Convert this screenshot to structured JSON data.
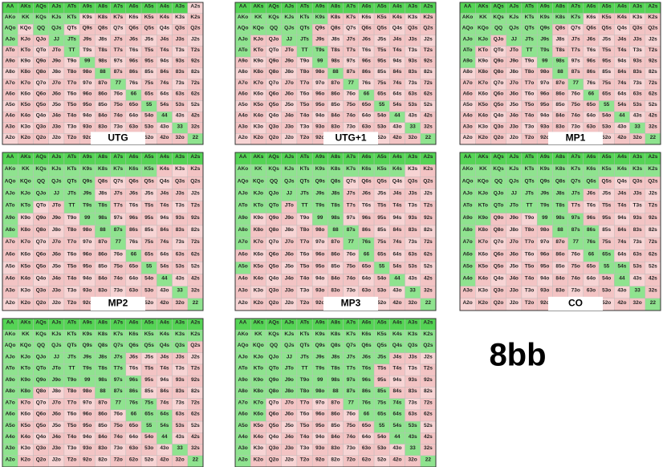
{
  "hands": [
    [
      "AA",
      "AKs",
      "AQs",
      "AJs",
      "ATs",
      "A9s",
      "A8s",
      "A7s",
      "A6s",
      "A5s",
      "A4s",
      "A3s",
      "A2s"
    ],
    [
      "AKo",
      "KK",
      "KQs",
      "KJs",
      "KTs",
      "K9s",
      "K8s",
      "K7s",
      "K6s",
      "K5s",
      "K4s",
      "K3s",
      "K2s"
    ],
    [
      "AQo",
      "KQo",
      "QQ",
      "QJs",
      "QTs",
      "Q9s",
      "Q8s",
      "Q7s",
      "Q6s",
      "Q5s",
      "Q4s",
      "Q3s",
      "Q2s"
    ],
    [
      "AJo",
      "KJo",
      "QJo",
      "JJ",
      "JTs",
      "J9s",
      "J8s",
      "J7s",
      "J6s",
      "J5s",
      "J4s",
      "J3s",
      "J2s"
    ],
    [
      "ATo",
      "KTo",
      "QTo",
      "JTo",
      "TT",
      "T9s",
      "T8s",
      "T7s",
      "T6s",
      "T5s",
      "T4s",
      "T3s",
      "T2s"
    ],
    [
      "A9o",
      "K9o",
      "Q9o",
      "J9o",
      "T9o",
      "99",
      "98s",
      "97s",
      "96s",
      "95s",
      "94s",
      "93s",
      "92s"
    ],
    [
      "A8o",
      "K8o",
      "Q8o",
      "J8o",
      "T8o",
      "98o",
      "88",
      "87s",
      "86s",
      "85s",
      "84s",
      "83s",
      "82s"
    ],
    [
      "A7o",
      "K7o",
      "Q7o",
      "J7o",
      "T7o",
      "97o",
      "87o",
      "77",
      "76s",
      "75s",
      "74s",
      "73s",
      "72s"
    ],
    [
      "A6o",
      "K6o",
      "Q6o",
      "J6o",
      "T6o",
      "96o",
      "86o",
      "76o",
      "66",
      "65s",
      "64s",
      "63s",
      "62s"
    ],
    [
      "A5o",
      "K5o",
      "Q5o",
      "J5o",
      "T5o",
      "95o",
      "85o",
      "75o",
      "65o",
      "55",
      "54s",
      "53s",
      "52s"
    ],
    [
      "A4o",
      "K4o",
      "Q4o",
      "J4o",
      "T4o",
      "94o",
      "84o",
      "74o",
      "64o",
      "54o",
      "44",
      "43s",
      "42s"
    ],
    [
      "A3o",
      "K3o",
      "Q3o",
      "J3o",
      "T3o",
      "93o",
      "83o",
      "73o",
      "63o",
      "53o",
      "43o",
      "33",
      "32s"
    ],
    [
      "A2o",
      "K2o",
      "Q2o",
      "J2o",
      "T2o",
      "92o",
      "82o",
      "72o",
      "62o",
      "52o",
      "42o",
      "32o",
      "22"
    ]
  ],
  "charts": [
    {
      "label": "UTG",
      "open": [
        "AA",
        "AKs",
        "AQs",
        "AJs",
        "ATs",
        "A9s",
        "A8s",
        "A7s",
        "A6s",
        "A5s",
        "A4s",
        "A3s",
        "AKo",
        "KK",
        "KQs",
        "KJs",
        "KTs",
        "AQo",
        "QQ",
        "QJs",
        "AJo",
        "JJ",
        "JTs",
        "TT",
        "99",
        "88",
        "77",
        "66",
        "55",
        "44",
        "33",
        "22"
      ]
    },
    {
      "label": "UTG+1",
      "open": [
        "AA",
        "AKs",
        "AQs",
        "AJs",
        "ATs",
        "A9s",
        "A8s",
        "A7s",
        "A6s",
        "A5s",
        "A4s",
        "A3s",
        "A2s",
        "AKo",
        "KK",
        "KQs",
        "KJs",
        "KTs",
        "K9s",
        "AQo",
        "KQo",
        "QQ",
        "QJs",
        "QTs",
        "AJo",
        "JJ",
        "JTs",
        "ATo",
        "TT",
        "T9s",
        "99",
        "88",
        "77",
        "66",
        "55",
        "44",
        "33",
        "22"
      ]
    },
    {
      "label": "MP1",
      "open": [
        "AA",
        "AKs",
        "AQs",
        "AJs",
        "ATs",
        "A9s",
        "A8s",
        "A7s",
        "A6s",
        "A5s",
        "A4s",
        "A3s",
        "A2s",
        "AKo",
        "KK",
        "KQs",
        "KJs",
        "KTs",
        "K9s",
        "K8s",
        "K7s",
        "AQo",
        "KQo",
        "QQ",
        "QJs",
        "QTs",
        "Q9s",
        "AJo",
        "KJo",
        "JJ",
        "JTs",
        "J9s",
        "ATo",
        "TT",
        "T9s",
        "A9o",
        "99",
        "98s",
        "88",
        "77",
        "66",
        "55",
        "44",
        "33",
        "22"
      ]
    },
    {
      "label": "MP2",
      "open": [
        "AA",
        "AKs",
        "AQs",
        "AJs",
        "ATs",
        "A9s",
        "A8s",
        "A7s",
        "A6s",
        "A5s",
        "A4s",
        "A3s",
        "A2s",
        "AKo",
        "KK",
        "KQs",
        "KJs",
        "KTs",
        "K9s",
        "K8s",
        "K7s",
        "K6s",
        "K5s",
        "AQo",
        "KQo",
        "QQ",
        "QJs",
        "QTs",
        "Q9s",
        "AJo",
        "KJo",
        "QJo",
        "JJ",
        "JTs",
        "J9s",
        "ATo",
        "KTo",
        "TT",
        "T9s",
        "T8s",
        "A9o",
        "99",
        "98s",
        "A8o",
        "88",
        "87s",
        "77",
        "66",
        "55",
        "44",
        "33",
        "22"
      ]
    },
    {
      "label": "MP3",
      "open": [
        "AA",
        "AKs",
        "AQs",
        "AJs",
        "ATs",
        "A9s",
        "A8s",
        "A7s",
        "A6s",
        "A5s",
        "A4s",
        "A3s",
        "A2s",
        "AKo",
        "KK",
        "KQs",
        "KJs",
        "KTs",
        "K9s",
        "K8s",
        "K7s",
        "K6s",
        "K5s",
        "K4s",
        "AQo",
        "KQo",
        "QQ",
        "QJs",
        "QTs",
        "Q9s",
        "Q8s",
        "AJo",
        "KJo",
        "QJo",
        "JJ",
        "JTs",
        "J9s",
        "J8s",
        "ATo",
        "KTo",
        "QTo",
        "TT",
        "T9s",
        "T8s",
        "A9o",
        "99",
        "98s",
        "A8o",
        "88",
        "87s",
        "A7o",
        "77",
        "76s",
        "66",
        "A5o",
        "55",
        "44",
        "33",
        "22"
      ]
    },
    {
      "label": "CO",
      "open": [
        "AA",
        "AKs",
        "AQs",
        "AJs",
        "ATs",
        "A9s",
        "A8s",
        "A7s",
        "A6s",
        "A5s",
        "A4s",
        "A3s",
        "A2s",
        "AKo",
        "KK",
        "KQs",
        "KJs",
        "KTs",
        "K9s",
        "K8s",
        "K7s",
        "K6s",
        "K5s",
        "K4s",
        "K3s",
        "K2s",
        "AQo",
        "KQo",
        "QQ",
        "QJs",
        "QTs",
        "Q9s",
        "Q8s",
        "Q7s",
        "Q6s",
        "AJo",
        "KJo",
        "QJo",
        "JJ",
        "JTs",
        "J9s",
        "J8s",
        "J7s",
        "ATo",
        "KTo",
        "QTo",
        "JTo",
        "TT",
        "T9s",
        "T8s",
        "A9o",
        "K9o",
        "99",
        "98s",
        "97s",
        "A8o",
        "88",
        "87s",
        "86s",
        "A7o",
        "77",
        "76s",
        "A6o",
        "66",
        "65s",
        "A5o",
        "55",
        "54s",
        "A4o",
        "44",
        "33",
        "22"
      ]
    },
    {
      "open": [
        "AA",
        "AKs",
        "AQs",
        "AJs",
        "ATs",
        "A9s",
        "A8s",
        "A7s",
        "A6s",
        "A5s",
        "A4s",
        "A3s",
        "A2s",
        "AKo",
        "KK",
        "KQs",
        "KJs",
        "KTs",
        "K9s",
        "K8s",
        "K7s",
        "K6s",
        "K5s",
        "K4s",
        "K3s",
        "K2s",
        "AQo",
        "KQo",
        "QQ",
        "QJs",
        "QTs",
        "Q9s",
        "Q8s",
        "Q7s",
        "Q6s",
        "Q5s",
        "Q4s",
        "Q3s",
        "AJo",
        "KJo",
        "QJo",
        "JJ",
        "JTs",
        "J9s",
        "J8s",
        "J7s",
        "ATo",
        "KTo",
        "QTo",
        "JTo",
        "TT",
        "T9s",
        "T8s",
        "T7s",
        "A9o",
        "K9o",
        "Q9o",
        "J9o",
        "T9o",
        "99",
        "98s",
        "97s",
        "96s",
        "A8o",
        "K8o",
        "88",
        "87s",
        "86s",
        "A7o",
        "77",
        "76s",
        "75s",
        "A6o",
        "66",
        "65s",
        "64s",
        "A5o",
        "55",
        "54s",
        "A4o",
        "44",
        "A3o",
        "33",
        "A2o",
        "22"
      ]
    },
    {
      "open": [
        "AA",
        "AKs",
        "AQs",
        "AJs",
        "ATs",
        "A9s",
        "A8s",
        "A7s",
        "A6s",
        "A5s",
        "A4s",
        "A3s",
        "A2s",
        "AKo",
        "KK",
        "KQs",
        "KJs",
        "KTs",
        "K9s",
        "K8s",
        "K7s",
        "K6s",
        "K5s",
        "K4s",
        "K3s",
        "K2s",
        "AQo",
        "KQo",
        "QQ",
        "QJs",
        "QTs",
        "Q9s",
        "Q8s",
        "Q7s",
        "Q6s",
        "Q5s",
        "Q4s",
        "Q3s",
        "Q2s",
        "AJo",
        "KJo",
        "QJo",
        "JJ",
        "JTs",
        "J9s",
        "J8s",
        "J7s",
        "J6s",
        "J5s",
        "ATo",
        "KTo",
        "QTo",
        "JTo",
        "TT",
        "T9s",
        "T8s",
        "T7s",
        "T6s",
        "A9o",
        "K9o",
        "Q9o",
        "J9o",
        "T9o",
        "99",
        "98s",
        "97s",
        "96s",
        "A8o",
        "K8o",
        "Q8o",
        "J8o",
        "T8o",
        "98o",
        "88",
        "87s",
        "86s",
        "85s",
        "A7o",
        "K7o",
        "77",
        "76s",
        "75s",
        "74s",
        "A6o",
        "K6o",
        "66",
        "65s",
        "64s",
        "A5o",
        "55",
        "54s",
        "53s",
        "A4o",
        "44",
        "43s",
        "A3o",
        "33",
        "A2o",
        "22"
      ]
    }
  ],
  "stack": "8bb"
}
